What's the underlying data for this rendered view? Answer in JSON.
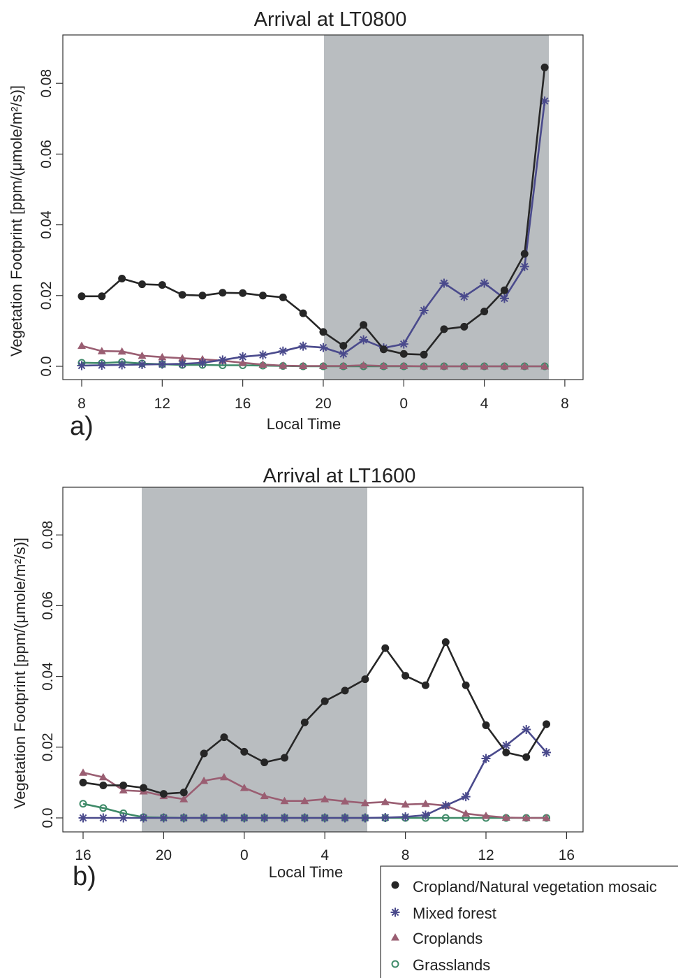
{
  "legend": {
    "entries": [
      {
        "label": "Cropland/Natural vegetation mosaic",
        "marker": "filled-circle",
        "color": "#262626"
      },
      {
        "label": "Mixed forest",
        "marker": "asterisk",
        "color": "#4a4a8c"
      },
      {
        "label": "Croplands",
        "marker": "filled-triangle",
        "color": "#9a5e72"
      },
      {
        "label": "Grasslands",
        "marker": "open-circle",
        "color": "#3e8a68"
      }
    ]
  },
  "chart_data": [
    {
      "type": "line",
      "panel": "a)",
      "title": "Arrival at LT0800",
      "xlabel": "Local Time",
      "ylabel": "Vegetation Footprint [ppm/(μmole/m²/s)]",
      "x_ticks": [
        "8",
        "12",
        "16",
        "20",
        "0",
        "4",
        "8"
      ],
      "y_ticks": [
        "0.0",
        "0.02",
        "0.04",
        "0.06",
        "0.08"
      ],
      "ylim": [
        0,
        0.092
      ],
      "shaded_region": "20 to 7 (night)",
      "x": [
        8,
        9,
        10,
        11,
        12,
        13,
        14,
        15,
        16,
        17,
        18,
        19,
        20,
        21,
        22,
        23,
        0,
        1,
        2,
        3,
        4,
        5,
        6,
        7
      ],
      "series": [
        {
          "name": "Cropland/Natural vegetation mosaic",
          "values": [
            0.0198,
            0.0198,
            0.0248,
            0.0232,
            0.023,
            0.0202,
            0.02,
            0.0208,
            0.0207,
            0.02,
            0.0195,
            0.015,
            0.0097,
            0.0058,
            0.0117,
            0.0048,
            0.0035,
            0.0033,
            0.0105,
            0.0112,
            0.0155,
            0.0215,
            0.0318,
            0.0845
          ]
        },
        {
          "name": "Mixed forest",
          "values": [
            0.0002,
            0.0003,
            0.0004,
            0.0005,
            0.0006,
            0.0007,
            0.001,
            0.0018,
            0.0027,
            0.0032,
            0.0043,
            0.0057,
            0.0053,
            0.0035,
            0.0075,
            0.0052,
            0.0063,
            0.0158,
            0.0235,
            0.0197,
            0.0235,
            0.0192,
            0.0282,
            0.075
          ]
        },
        {
          "name": "Croplands",
          "values": [
            0.0058,
            0.0043,
            0.0042,
            0.003,
            0.0026,
            0.0023,
            0.002,
            0.0016,
            0.001,
            0.0005,
            0.0002,
            0.0001,
            0.0001,
            0.0001,
            0.0003,
            0.0001,
            0.0001,
            0.0,
            0.0,
            0.0,
            0.0,
            0.0,
            0.0,
            0.0
          ]
        },
        {
          "name": "Grasslands",
          "values": [
            0.001,
            0.0009,
            0.0012,
            0.0008,
            0.0006,
            0.0004,
            0.0004,
            0.0003,
            0.0003,
            0.0002,
            0.0001,
            0.0,
            0.0,
            0.0,
            0.0,
            0.0,
            0.0,
            0.0,
            0.0,
            0.0,
            0.0,
            0.0,
            0.0,
            0.0
          ]
        }
      ]
    },
    {
      "type": "line",
      "panel": "b)",
      "title": "Arrival at LT1600",
      "xlabel": "Local Time",
      "ylabel": "Vegetation Footprint [ppm/(μmole/m²/s)]",
      "x_ticks": [
        "16",
        "20",
        "0",
        "4",
        "8",
        "12",
        "16"
      ],
      "y_ticks": [
        "0.0",
        "0.02",
        "0.04",
        "0.06",
        "0.08"
      ],
      "ylim": [
        0,
        0.092
      ],
      "shaded_region": "19 to 6 (night)",
      "x": [
        16,
        17,
        18,
        19,
        20,
        21,
        22,
        23,
        0,
        1,
        2,
        3,
        4,
        5,
        6,
        7,
        8,
        9,
        10,
        11,
        12,
        13,
        14,
        15
      ],
      "series": [
        {
          "name": "Cropland/Natural vegetation mosaic",
          "values": [
            0.01,
            0.0092,
            0.0092,
            0.0085,
            0.0068,
            0.0072,
            0.0182,
            0.0228,
            0.0187,
            0.0157,
            0.017,
            0.027,
            0.033,
            0.036,
            0.0392,
            0.048,
            0.0402,
            0.0375,
            0.0497,
            0.0375,
            0.0262,
            0.0185,
            0.0172,
            0.0265
          ]
        },
        {
          "name": "Mixed forest",
          "values": [
            0.0,
            0.0,
            0.0,
            0.0,
            0.0,
            0.0,
            0.0,
            0.0,
            0.0,
            0.0,
            0.0,
            0.0,
            0.0,
            0.0,
            0.0,
            0.0001,
            0.0003,
            0.0008,
            0.0035,
            0.006,
            0.0168,
            0.0205,
            0.025,
            0.0185
          ]
        },
        {
          "name": "Croplands",
          "values": [
            0.0128,
            0.0115,
            0.0078,
            0.0075,
            0.0062,
            0.0053,
            0.0105,
            0.0115,
            0.0085,
            0.0062,
            0.0048,
            0.0048,
            0.0053,
            0.0047,
            0.0042,
            0.0045,
            0.0038,
            0.004,
            0.0035,
            0.0012,
            0.0006,
            0.0001,
            0.0,
            0.0
          ]
        },
        {
          "name": "Grasslands",
          "values": [
            0.004,
            0.0028,
            0.0013,
            0.0002,
            0.0001,
            0.0,
            0.0,
            0.0,
            0.0,
            0.0,
            0.0,
            0.0,
            0.0,
            0.0,
            0.0,
            0.0,
            0.0,
            0.0,
            0.0,
            0.0,
            0.0,
            0.0,
            0.0,
            0.0
          ]
        }
      ]
    }
  ]
}
